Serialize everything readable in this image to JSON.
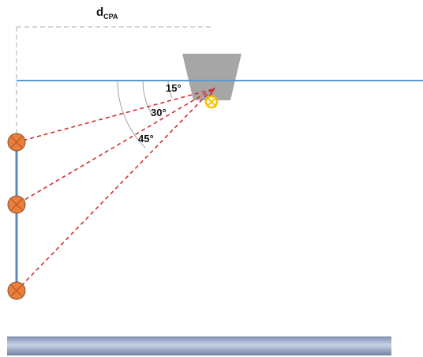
{
  "title": {
    "main": "d",
    "subscript": "CPA"
  },
  "angles": [
    {
      "label": "15°"
    },
    {
      "label": "30°"
    },
    {
      "label": "45°"
    }
  ],
  "colors": {
    "waterline": "#5a9bd5",
    "array": "#5f87bf",
    "sensor_fill": "#e8803a",
    "sensor_stroke": "#7f4a2a",
    "ray": "#d32f2f",
    "hull": "#a6a6a6",
    "source": "#f2c200",
    "dim_line": "#bdbdbd",
    "arc": "#9aa3ad",
    "seabed_top": "#8696b4",
    "seabed_bottom": "#c8d2e4"
  },
  "icons": {
    "source": "source-crosshair-icon",
    "sensor": "hydrophone-icon"
  }
}
